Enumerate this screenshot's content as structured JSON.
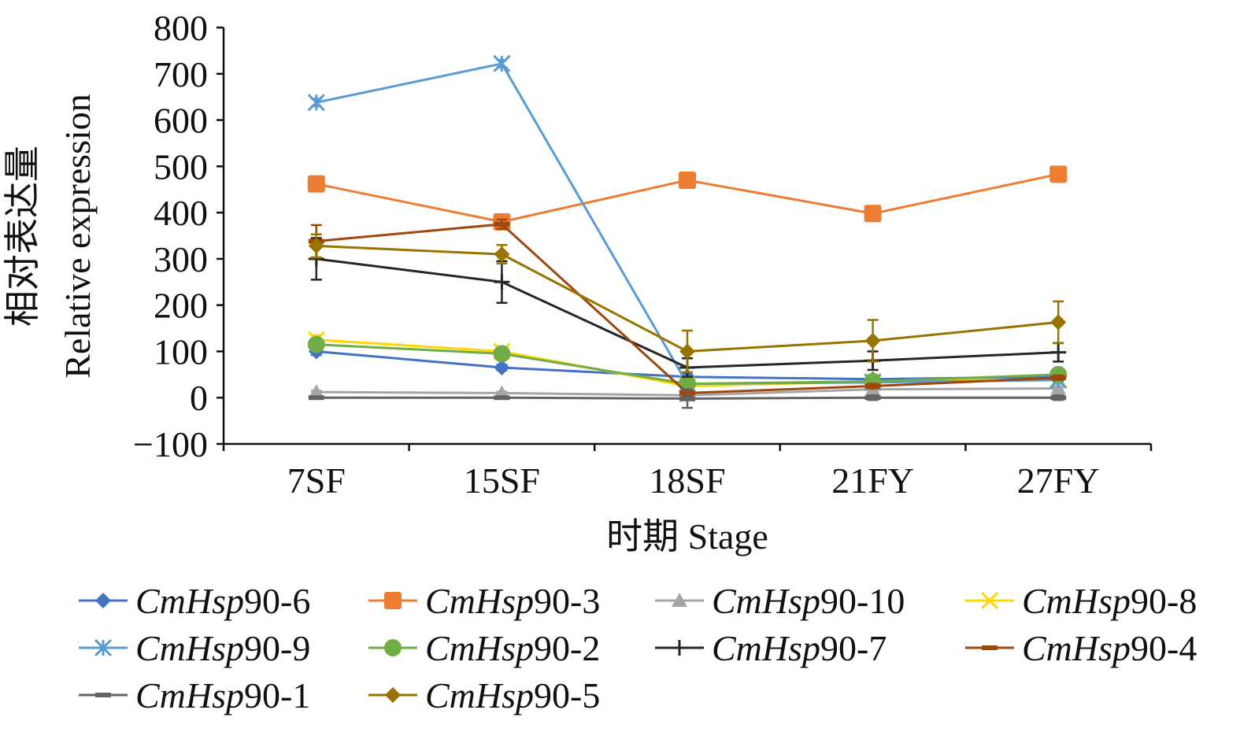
{
  "chart_data": {
    "type": "line",
    "title": "",
    "xlabel": "时期 Stage",
    "ylabel_cn": "相对表达量",
    "ylabel_en": "Relative expression",
    "categories": [
      "7SF",
      "15SF",
      "18SF",
      "21FY",
      "27FY"
    ],
    "ylim": [
      -100,
      800
    ],
    "yticks": [
      -100,
      0,
      100,
      200,
      300,
      400,
      500,
      600,
      700,
      800
    ],
    "ytick_labels": [
      "−100",
      "0",
      "100",
      "200",
      "300",
      "400",
      "500",
      "600",
      "700",
      "800"
    ],
    "legend_position": "bottom",
    "series": [
      {
        "prefix": "CmHsp",
        "suffix": "90-6",
        "color": "#4472c4",
        "marker": "diamond",
        "values": [
          100,
          65,
          45,
          40,
          45
        ],
        "errors": [
          8,
          6,
          5,
          5,
          5
        ]
      },
      {
        "prefix": "CmHsp",
        "suffix": "90-3",
        "color": "#ed7d31",
        "marker": "square",
        "values": [
          462,
          380,
          470,
          398,
          483
        ],
        "errors": [
          15,
          12,
          15,
          15,
          12
        ]
      },
      {
        "prefix": "CmHsp",
        "suffix": "90-10",
        "color": "#a5a5a5",
        "marker": "triangle",
        "values": [
          12,
          10,
          5,
          18,
          20
        ],
        "errors": [
          3,
          3,
          3,
          3,
          3
        ]
      },
      {
        "prefix": "CmHsp",
        "suffix": "90-8",
        "color": "#ffd700",
        "marker": "x",
        "values": [
          125,
          100,
          25,
          35,
          40
        ],
        "errors": [
          10,
          8,
          5,
          5,
          5
        ]
      },
      {
        "prefix": "CmHsp",
        "suffix": "90-9",
        "color": "#5b9bd5",
        "marker": "asterisk",
        "values": [
          638,
          722,
          30,
          33,
          38
        ],
        "errors": [
          8,
          8,
          5,
          5,
          5
        ]
      },
      {
        "prefix": "CmHsp",
        "suffix": "90-2",
        "color": "#70ad47",
        "marker": "circle",
        "values": [
          115,
          95,
          30,
          35,
          50
        ],
        "errors": [
          8,
          8,
          5,
          5,
          5
        ]
      },
      {
        "prefix": "CmHsp",
        "suffix": "90-7",
        "color": "#262626",
        "marker": "plus",
        "values": [
          300,
          250,
          65,
          80,
          98
        ],
        "errors": [
          45,
          45,
          20,
          20,
          20
        ]
      },
      {
        "prefix": "CmHsp",
        "suffix": "90-4",
        "color": "#9e480e",
        "marker": "dash",
        "values": [
          338,
          375,
          10,
          25,
          43
        ],
        "errors": [
          35,
          10,
          5,
          5,
          5
        ]
      },
      {
        "prefix": "CmHsp",
        "suffix": "90-1",
        "color": "#636363",
        "marker": "dash",
        "values": [
          0,
          0,
          -2,
          0,
          0
        ],
        "errors": [
          2,
          2,
          20,
          5,
          5
        ]
      },
      {
        "prefix": "CmHsp",
        "suffix": "90-5",
        "color": "#997300",
        "marker": "diamond",
        "values": [
          328,
          310,
          100,
          123,
          163
        ],
        "errors": [
          25,
          20,
          45,
          45,
          45
        ]
      }
    ]
  }
}
